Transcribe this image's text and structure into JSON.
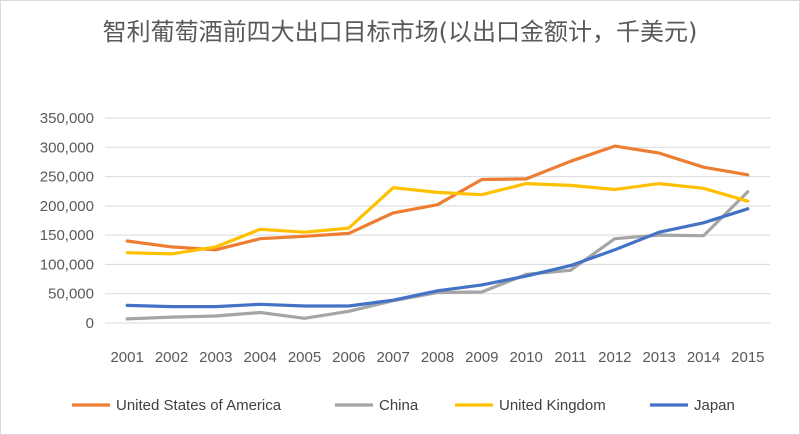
{
  "chart_data": {
    "type": "line",
    "title": "智利葡萄酒前四大出口目标市场(以出口金额计，千美元)",
    "xlabel": "",
    "ylabel": "",
    "x": [
      "2001",
      "2002",
      "2003",
      "2004",
      "2005",
      "2006",
      "2007",
      "2008",
      "2009",
      "2010",
      "2011",
      "2012",
      "2013",
      "2014",
      "2015"
    ],
    "ylim": [
      0,
      350000
    ],
    "y_ticks": [
      "0",
      "50,000",
      "100,000",
      "150,000",
      "200,000",
      "250,000",
      "300,000",
      "350,000"
    ],
    "grid": true,
    "legend_position": "bottom",
    "series": [
      {
        "name": "United States of America",
        "color": "#ED7D31",
        "values": [
          140000,
          130000,
          125000,
          144000,
          148000,
          153000,
          188000,
          202000,
          245000,
          246000,
          276000,
          302000,
          290000,
          266000,
          253000
        ]
      },
      {
        "name": "China",
        "color": "#A5A5A5",
        "values": [
          7000,
          10000,
          12000,
          18000,
          8000,
          20000,
          38000,
          52000,
          53000,
          83000,
          90000,
          144000,
          150000,
          149000,
          224000
        ]
      },
      {
        "name": "United Kingdom",
        "color": "#FFC000",
        "values": [
          120000,
          118000,
          130000,
          160000,
          155000,
          162000,
          231000,
          223000,
          219000,
          238000,
          235000,
          228000,
          238000,
          230000,
          208000
        ]
      },
      {
        "name": "Japan",
        "color": "#4472C4",
        "values": [
          30000,
          28000,
          28000,
          32000,
          29000,
          29000,
          39000,
          55000,
          65000,
          80000,
          98000,
          125000,
          155000,
          171000,
          195000
        ]
      }
    ]
  }
}
